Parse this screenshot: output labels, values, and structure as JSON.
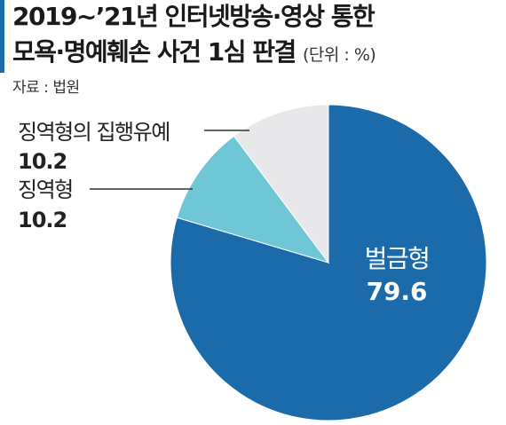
{
  "header": {
    "title_line1": "2019~’21년 인터넷방송·영상 통한",
    "title_line2": "모욕·명예훼손 사건 1심 판결",
    "unit": "(단위 : %)",
    "source": "자료 : 법원"
  },
  "colors": {
    "accent": "#1b6aa9",
    "slice_fine": "#1b6aa9",
    "slice_prison": "#6fc7d6",
    "slice_suspended": "#e8e8ea"
  },
  "chart_data": {
    "type": "pie",
    "start": "12 o'clock",
    "direction": "clockwise",
    "slices": [
      {
        "label": "벌금형",
        "value": 79.6,
        "value_text": "79.6",
        "color": "#1b6aa9"
      },
      {
        "label": "징역형",
        "value": 10.2,
        "value_text": "10.2",
        "color": "#6fc7d6"
      },
      {
        "label": "징역형의 집행유예",
        "value": 10.2,
        "value_text": "10.2",
        "color": "#e8e8ea"
      }
    ]
  }
}
